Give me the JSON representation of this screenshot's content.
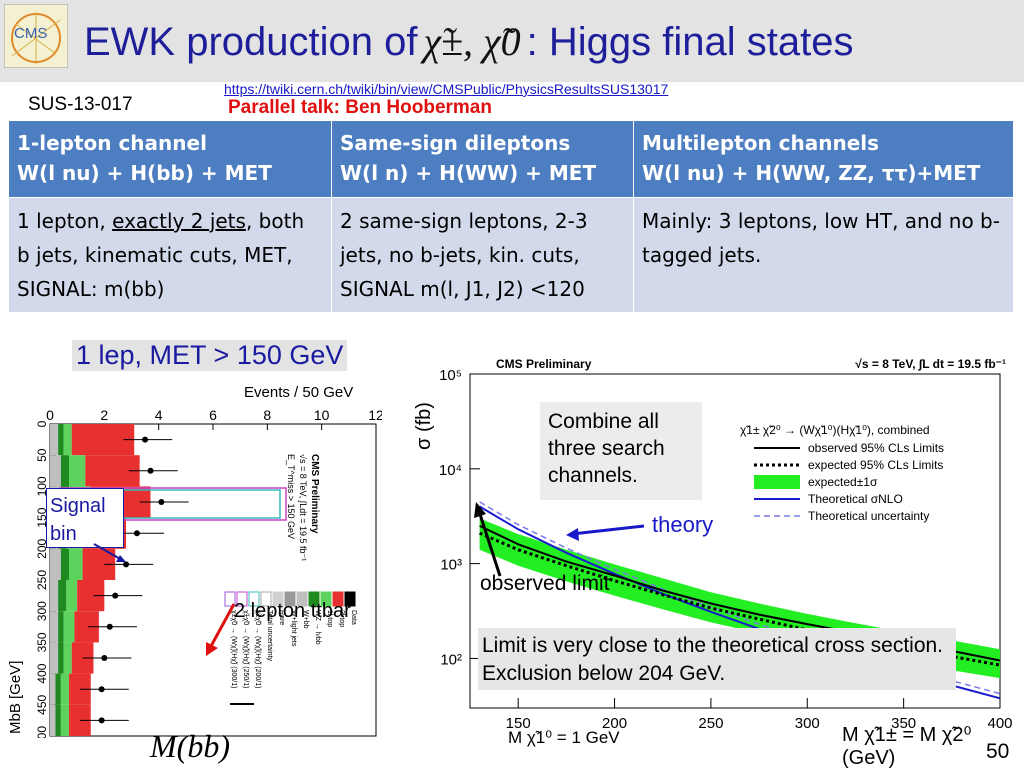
{
  "header": {
    "title_prefix": "EWK production of",
    "title_math": "χ̃±, χ̃0",
    "title_suffix": ": Higgs final states",
    "url": "https://twiki.cern.ch/twiki/bin/view/CMSPublic/PhysicsResultsSUS13017",
    "talk": "Parallel talk: Ben Hooberman",
    "analysis_id": "SUS-13-017",
    "logo_text": "CMS"
  },
  "table": {
    "headers": [
      {
        "line1": "1-lepton channel",
        "line2": "W(l nu) + H(bb) + MET"
      },
      {
        "line1": "Same-sign dileptons",
        "line2": "W(l n) +  H(WW) + MET"
      },
      {
        "line1": "Multilepton channels",
        "line2": "W(l nu) + H(WW, ZZ, ττ)+MET"
      }
    ],
    "cells": [
      {
        "part1": "1 lepton, ",
        "underlined": "exactly 2 jets",
        "part2": ", both b jets, kinematic cuts, MET, SIGNAL: m(bb)"
      },
      {
        "text": "2 same-sign leptons, 2-3 jets, no b-jets, kin. cuts, SIGNAL m(l, J1, J2) <120"
      },
      {
        "text": "Mainly: 3 leptons, low HT, and no b-tagged jets."
      }
    ]
  },
  "left_plot": {
    "caption": "1 lep, MET > 150 GeV",
    "events_label": "Events / 50 GeV",
    "axis_label": "MbB [GeV]",
    "mbb_label": "M(bb)",
    "signal_label": "Signal bin",
    "lepton_label": "2 lepton ttbar",
    "count_ticks": [
      "0",
      "2",
      "4",
      "6",
      "8",
      "10",
      "12"
    ],
    "mass_ticks": [
      "0",
      "50",
      "100",
      "150",
      "200",
      "250",
      "300",
      "350",
      "400",
      "450",
      "500"
    ],
    "cms_label": "CMS Preliminary",
    "energy_label": "√s = 8 TeV, ∫Ldt = 19.5 fb⁻¹",
    "met_label": "E_T^miss > 150 GeV",
    "legend": [
      "Data",
      "2l top",
      "1l top",
      "WZ → lνbb",
      "W+bb",
      "W+light jets",
      "Rare",
      "Total uncertainty",
      "χ̃±χ̃0 → (Wχ̃)(Hχ̃) (200/1)",
      "χ̃±χ̃0 → (Wχ̃)(Hχ̃) (250/1)",
      "χ̃±χ̃0 → (Wχ̃)(Hχ̃) (300/1)"
    ]
  },
  "right_plot": {
    "ylabel": "σ (fb)",
    "cms_label": "CMS Preliminary",
    "energy_label": "√s = 8 TeV, ∫L dt = 19.5 fb⁻¹",
    "legend_title": "χ̃1± χ̃2⁰ → (Wχ̃1⁰)(Hχ̃1⁰), combined",
    "legend": [
      "observed 95% CLs Limits",
      "expected 95% CLs Limits",
      "expected±1σ",
      "Theoretical σNLO",
      "Theoretical uncertainty"
    ],
    "y_ticks": [
      "10²",
      "10³",
      "10⁴",
      "10⁵"
    ],
    "x_ticks": [
      "150",
      "200",
      "250",
      "300",
      "350",
      "400"
    ],
    "mass_condition": "M χ̃1⁰ = 1 GeV",
    "xaxis_label": "M χ̃1± = M χ̃2⁰ (GeV)",
    "combine_note": "Combine all three search channels.",
    "theory_label": "theory",
    "observed_label": "observed limit",
    "summary": "Limit is very close to the theoretical cross section. Exclusion below 204 GeV."
  },
  "chart_data": {
    "type": "line",
    "title": "",
    "xlabel": "M χ̃1± = M χ̃2⁰ (GeV)",
    "ylabel": "σ (fb)",
    "xlim": [
      125,
      400
    ],
    "ylim": [
      30,
      100000
    ],
    "log_y": true,
    "x": [
      130,
      150,
      175,
      200,
      225,
      250,
      275,
      300,
      325,
      350,
      375,
      400
    ],
    "series": [
      {
        "name": "observed 95% CLs Limits",
        "values": [
          2500,
          1600,
          1050,
          750,
          520,
          380,
          290,
          230,
          185,
          150,
          120,
          95
        ]
      },
      {
        "name": "expected 95% CLs Limits",
        "values": [
          2100,
          1400,
          950,
          660,
          470,
          340,
          260,
          200,
          160,
          130,
          105,
          85
        ]
      },
      {
        "name": "Theoretical σNLO",
        "values": [
          4000,
          2300,
          1300,
          780,
          480,
          310,
          205,
          140,
          98,
          70,
          52,
          38
        ]
      }
    ],
    "band": {
      "name": "expected±1σ",
      "low": [
        1400,
        950,
        650,
        460,
        330,
        240,
        185,
        140,
        112,
        92,
        75,
        62
      ],
      "high": [
        3000,
        2050,
        1400,
        980,
        700,
        500,
        380,
        295,
        235,
        190,
        155,
        125
      ]
    }
  },
  "colors": {
    "title": "#1e1e9a",
    "header": "#4d7ec1",
    "cell": "#d1d9ea",
    "talk": "#e01010",
    "band": "#22ee22",
    "theory": "#1a1ad0"
  }
}
